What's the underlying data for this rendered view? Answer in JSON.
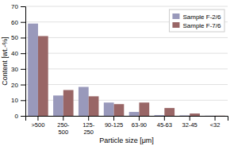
{
  "chart_data": {
    "type": "bar",
    "categories": [
      ">500",
      "250-\n500",
      "125-\n250",
      "90-125",
      "63-90",
      "45-63",
      "32-45",
      "<32"
    ],
    "series": [
      {
        "name": "Sample F-2/6",
        "color": "#9999bb",
        "values": [
          59,
          13,
          18.5,
          8.5,
          2.5,
          0.5,
          0.3,
          0.1
        ]
      },
      {
        "name": "Sample F-7/6",
        "color": "#996666",
        "values": [
          51,
          16.5,
          12.5,
          7.5,
          8.5,
          5,
          1.5,
          0.1
        ]
      }
    ],
    "xlabel": "Particle size [μm]",
    "ylabel": "Content [wt.-%]",
    "ylim": [
      0,
      70
    ],
    "yticks": [
      0,
      10,
      20,
      30,
      40,
      50,
      60,
      70
    ],
    "grid": true,
    "legend": "upper right"
  }
}
